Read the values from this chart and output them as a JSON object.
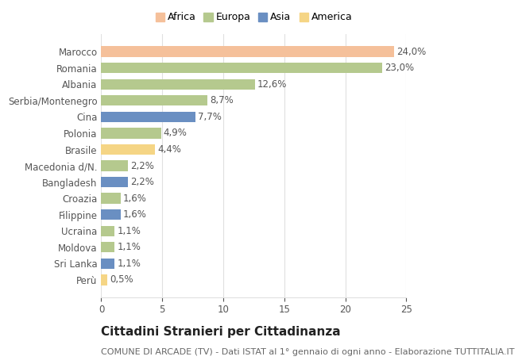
{
  "categories": [
    "Marocco",
    "Romania",
    "Albania",
    "Serbia/Montenegro",
    "Cina",
    "Polonia",
    "Brasile",
    "Macedonia d/N.",
    "Bangladesh",
    "Croazia",
    "Filippine",
    "Ucraina",
    "Moldova",
    "Sri Lanka",
    "Perù"
  ],
  "values": [
    24.0,
    23.0,
    12.6,
    8.7,
    7.7,
    4.9,
    4.4,
    2.2,
    2.2,
    1.6,
    1.6,
    1.1,
    1.1,
    1.1,
    0.5
  ],
  "labels": [
    "24,0%",
    "23,0%",
    "12,6%",
    "8,7%",
    "7,7%",
    "4,9%",
    "4,4%",
    "2,2%",
    "2,2%",
    "1,6%",
    "1,6%",
    "1,1%",
    "1,1%",
    "1,1%",
    "0,5%"
  ],
  "colors": [
    "#F5C09A",
    "#B5C98E",
    "#B5C98E",
    "#B5C98E",
    "#6A8FC2",
    "#B5C98E",
    "#F5D585",
    "#B5C98E",
    "#6A8FC2",
    "#B5C98E",
    "#6A8FC2",
    "#B5C98E",
    "#B5C98E",
    "#6A8FC2",
    "#F5D585"
  ],
  "legend_labels": [
    "Africa",
    "Europa",
    "Asia",
    "America"
  ],
  "legend_colors": [
    "#F5C09A",
    "#B5C98E",
    "#6A8FC2",
    "#F5D585"
  ],
  "xlim": [
    0,
    25
  ],
  "xticks": [
    0,
    5,
    10,
    15,
    20,
    25
  ],
  "title": "Cittadini Stranieri per Cittadinanza",
  "subtitle": "COMUNE DI ARCADE (TV) - Dati ISTAT al 1° gennaio di ogni anno - Elaborazione TUTTITALIA.IT",
  "bg_color": "#ffffff",
  "grid_color": "#e0e0e0",
  "bar_height": 0.65,
  "label_fontsize": 8.5,
  "title_fontsize": 11,
  "subtitle_fontsize": 8,
  "ytick_fontsize": 8.5,
  "xtick_fontsize": 8.5,
  "legend_fontsize": 9
}
